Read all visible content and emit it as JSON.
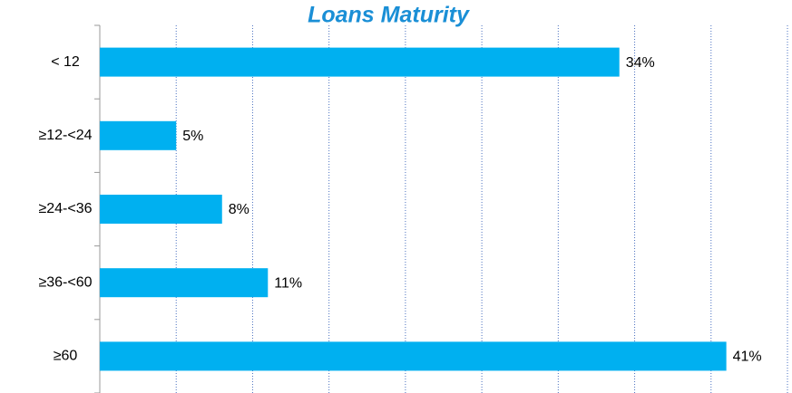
{
  "chart_data": {
    "type": "bar",
    "orientation": "horizontal",
    "title": "Loans Maturity",
    "categories": [
      "< 12",
      "≥12-<24",
      "≥24-<36",
      "≥36-<60",
      "≥60"
    ],
    "values": [
      34,
      5,
      8,
      11,
      41
    ],
    "value_labels": [
      "34%",
      "5%",
      "8%",
      "11%",
      "41%"
    ],
    "color": "#00b0f0",
    "xlim": [
      0,
      45
    ],
    "xticks": [
      0,
      5,
      10,
      15,
      20,
      25,
      30,
      35,
      40,
      45
    ],
    "grid": true
  }
}
